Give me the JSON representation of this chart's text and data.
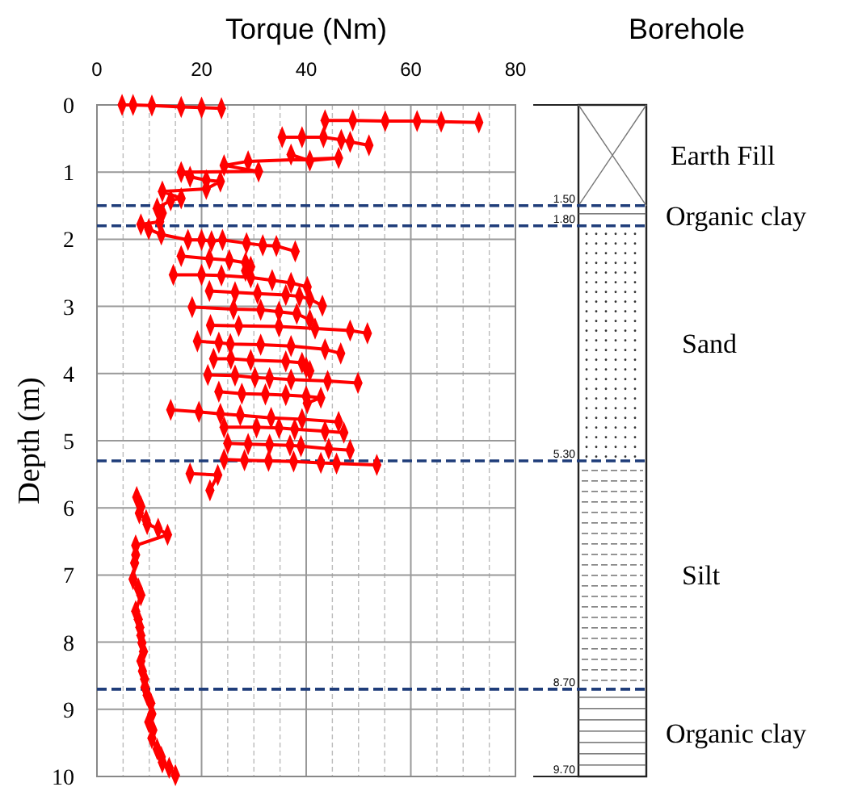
{
  "chart_data": {
    "type": "line",
    "title": "Torque (Nm)",
    "ylabel": "Depth (m)",
    "xlim": [
      0,
      80
    ],
    "xticks": [
      0,
      20,
      40,
      60,
      80
    ],
    "ylim": [
      10,
      0
    ],
    "yticks": [
      0,
      1,
      2,
      3,
      4,
      5,
      6,
      7,
      8,
      9,
      10
    ],
    "grid": true,
    "marker": "diamond",
    "line_style": "solid",
    "series": [
      {
        "color": "#ff0000",
        "x": [
          4.8,
          6.9,
          10.5,
          16.1,
          20,
          23.8,
          null,
          43.6,
          48.9,
          55.1,
          61.2,
          65.8,
          73.0,
          null,
          35.4,
          39.2,
          43.3,
          46.7,
          48.4,
          52.0,
          null,
          37.1,
          40.7,
          46.2,
          28.9,
          24.3,
          30.9,
          16.1,
          17.8,
          20.9,
          23.6,
          20.9,
          12.5,
          16.1,
          14.1,
          11.5,
          12.5,
          12.0,
          8.4,
          9.9,
          12.3,
          17.4,
          20.0,
          21.9,
          24.0,
          28.6,
          31.7,
          34.3,
          37.9,
          null,
          16.1,
          21.5,
          25.3,
          28.4,
          29.4,
          28.4,
          null,
          14.6,
          20,
          23.8,
          29.4,
          33.5,
          37.1,
          40.2,
          null,
          21.5,
          26.4,
          30.7,
          36.1,
          38.7,
          40.7,
          43.1,
          null,
          18.2,
          26.1,
          31.3,
          34.8,
          38.2,
          40.7,
          null,
          21.7,
          27.1,
          34.8,
          41.7,
          48.4,
          51.7,
          null,
          19.2,
          23.3,
          25.5,
          31.3,
          37.1,
          43.6,
          46.6,
          null,
          22.3,
          25.6,
          29.4,
          36.1,
          39.2,
          40,
          40.7,
          null,
          21.2,
          26.4,
          30.2,
          33,
          37.1,
          44.1,
          49.9,
          null,
          23.3,
          27.7,
          32.2,
          36.1,
          40,
          42.8,
          40.2,
          null,
          14.1,
          19.5,
          23.6,
          27.4,
          33.3,
          39.2,
          46.2,
          null,
          24.3,
          30.5,
          34.8,
          37.8,
          43.6,
          47.2,
          null,
          25,
          28.9,
          33,
          36.9,
          39,
          44.3,
          48.4,
          null,
          24.3,
          28.2,
          32.8,
          37.6,
          42.8,
          45.8,
          53.5,
          null,
          17.8,
          23.1,
          21.6,
          null,
          7.6,
          8.4,
          8.1,
          9.4,
          9.6,
          11.7,
          13.5,
          7.4,
          7.4,
          7.2,
          6.9,
          7.9,
          8.4,
          7.4,
          7.9,
          8.2,
          8.4,
          8.6,
          8.9,
          8.4,
          8.7,
          9.1,
          9.2,
          9.6,
          10.3,
          10.5,
          9.9,
          10.7,
          10.5,
          11.5,
          12.3,
          12.5,
          13.8,
          15.0
        ],
        "values": [
          0,
          0,
          0.01,
          0.03,
          0.04,
          0.05,
          null,
          0.23,
          0.23,
          0.24,
          0.24,
          0.25,
          0.26,
          null,
          0.48,
          0.48,
          0.48,
          0.52,
          0.55,
          0.6,
          null,
          0.74,
          0.83,
          0.79,
          0.84,
          0.9,
          0.99,
          1.0,
          1.07,
          1.12,
          1.14,
          1.25,
          1.29,
          1.39,
          1.42,
          1.54,
          1.61,
          1.74,
          1.78,
          1.85,
          1.93,
          2.01,
          2.01,
          2.03,
          2.01,
          2.06,
          2.09,
          2.1,
          2.18,
          null,
          2.25,
          2.29,
          2.31,
          2.35,
          2.41,
          2.47,
          null,
          2.53,
          2.53,
          2.54,
          2.57,
          2.61,
          2.65,
          2.71,
          null,
          2.77,
          2.79,
          2.81,
          2.83,
          2.85,
          2.89,
          2.99,
          null,
          3.01,
          3.04,
          3.05,
          3.08,
          3.11,
          3.2,
          null,
          3.28,
          3.29,
          3.3,
          3.33,
          3.36,
          3.4,
          null,
          3.52,
          3.54,
          3.56,
          3.57,
          3.59,
          3.64,
          3.7,
          null,
          3.78,
          3.78,
          3.8,
          3.82,
          3.84,
          3.91,
          3.96,
          null,
          4.02,
          4.03,
          4.06,
          4.07,
          4.09,
          4.11,
          4.14,
          null,
          4.27,
          4.3,
          4.31,
          4.32,
          4.34,
          4.36,
          4.44,
          null,
          4.54,
          4.57,
          4.6,
          4.62,
          4.66,
          4.68,
          4.72,
          null,
          4.8,
          4.8,
          4.81,
          4.83,
          4.86,
          4.88,
          null,
          5.04,
          5.05,
          5.06,
          5.07,
          5.08,
          5.12,
          5.14,
          null,
          5.28,
          5.29,
          5.3,
          5.31,
          5.33,
          5.34,
          5.36,
          null,
          5.49,
          5.51,
          5.74,
          null,
          5.84,
          5.98,
          6.08,
          6.18,
          6.24,
          6.31,
          6.4,
          6.56,
          6.7,
          6.82,
          7.06,
          7.2,
          7.3,
          7.54,
          7.66,
          7.78,
          7.9,
          8.01,
          8.14,
          8.28,
          8.43,
          8.55,
          8.67,
          8.79,
          8.91,
          9.07,
          9.19,
          9.31,
          9.43,
          9.59,
          9.71,
          9.79,
          9.87,
          9.98
        ]
      }
    ],
    "ref_lines": [
      {
        "axis": "y",
        "value": 1.5,
        "label": "1.50",
        "color": "#1f3d7a",
        "line_style": "dashed"
      },
      {
        "axis": "y",
        "value": 1.8,
        "label": "1.80",
        "color": "#1f3d7a",
        "line_style": "dashed"
      },
      {
        "axis": "y",
        "value": 5.3,
        "label": "5.30",
        "color": "#1f3d7a",
        "line_style": "dashed"
      },
      {
        "axis": "y",
        "value": 8.7,
        "label": "8.70",
        "color": "#1f3d7a",
        "line_style": "dashed"
      }
    ],
    "annotations": [
      "Borehole",
      "Earth Fill",
      "Organic clay",
      "Sand",
      "Silt",
      "Organic clay",
      "9.70"
    ]
  }
}
